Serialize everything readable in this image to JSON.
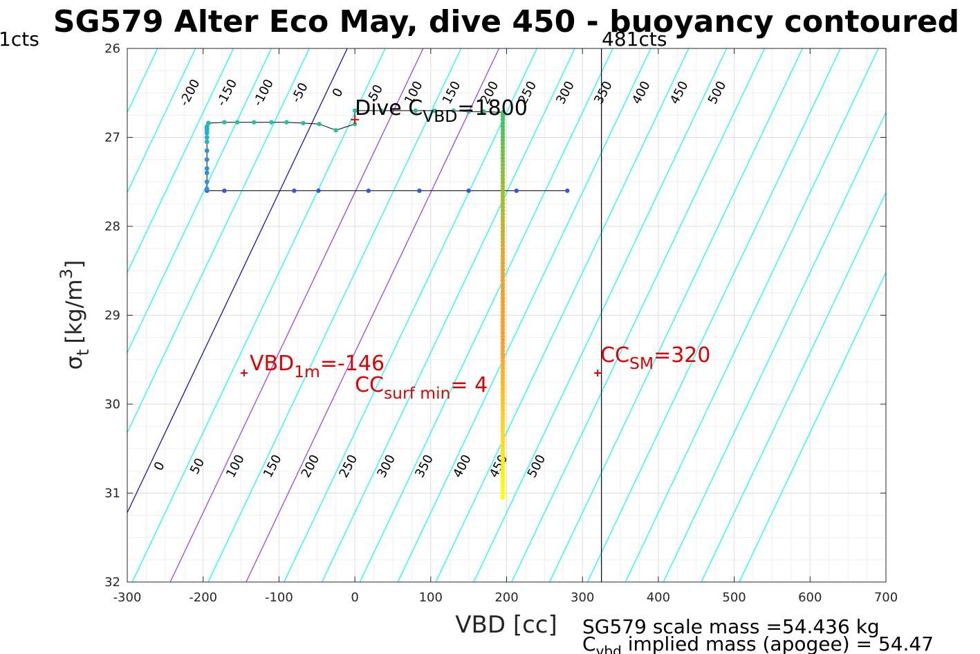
{
  "chart_data": {
    "type": "line",
    "title": "SG579 Alter Eco May, dive 450 - buoyancy contoured",
    "xlabel": "VBD [cc]",
    "ylabel_main": "σ",
    "ylabel_sub": "t",
    "ylabel_unit": "[kg/m",
    "ylabel_exp": "3",
    "ylabel_end": "]",
    "xlim": [
      -300,
      700
    ],
    "ylim": [
      26,
      32
    ],
    "y_reversed": true,
    "grid": true,
    "xticks": [
      -300,
      -200,
      -100,
      0,
      100,
      200,
      300,
      400,
      500,
      600,
      700
    ],
    "yticks": [
      26,
      27,
      28,
      29,
      30,
      31,
      32
    ],
    "contour_top_levels": [
      "-200",
      "-150",
      "-100",
      "-50",
      "0",
      "50",
      "100",
      "150",
      "200",
      "250",
      "300",
      "350",
      "400",
      "450",
      "500"
    ],
    "contour_bottom_levels": [
      "0",
      "50",
      "100",
      "150",
      "200",
      "250",
      "300",
      "350",
      "400",
      "450",
      "500"
    ],
    "contour_colors": {
      "cyan": "#00ffff",
      "zero": "#0000cc",
      "highlight": "#9933ff"
    },
    "highlight_x_at_top": [
      90,
      190
    ],
    "vertical_line_x": 325,
    "vertical_line_label_left": "1cts",
    "vertical_line_label_right": "481cts",
    "descent_track": {
      "color": "#3355ee",
      "x": [
        -195,
        -172,
        -80,
        -48,
        18,
        85,
        150,
        213,
        280
      ],
      "y": [
        27.6,
        27.6,
        27.6,
        27.6,
        27.6,
        27.6,
        27.6,
        27.6,
        27.6
      ]
    },
    "apogee_track": {
      "x": [
        -195,
        -195,
        -195,
        -195,
        -195,
        -195,
        -195,
        -195,
        -195,
        -195,
        -195,
        -195,
        -193
      ],
      "y": [
        27.58,
        27.5,
        27.4,
        27.35,
        27.25,
        27.15,
        27.05,
        27.0,
        26.95,
        26.92,
        26.9,
        26.88,
        26.84
      ]
    },
    "upper_track": {
      "color": "#26bfa0",
      "x": [
        -193,
        -172,
        -155,
        -133,
        -110,
        -90,
        -68,
        -47,
        -25,
        0,
        0,
        35,
        80,
        105,
        130,
        150,
        170,
        195
      ],
      "y": [
        26.84,
        26.83,
        26.83,
        26.83,
        26.83,
        26.83,
        26.84,
        26.85,
        26.92,
        26.85,
        26.7,
        26.7,
        26.7,
        26.7,
        26.7,
        26.71,
        26.71,
        26.72
      ]
    },
    "ascent_column": {
      "x": 195,
      "y_start": 26.72,
      "y_end": 31.05,
      "color_stops": [
        "#3ec16e",
        "#9fbf2a",
        "#e8a82a",
        "#ff9e20",
        "#ffd21a",
        "#ffff00"
      ]
    },
    "markers": [
      {
        "x": -146,
        "y": 29.65,
        "label_main": "VBD",
        "label_sub": "1m",
        "label_tail": "=-146"
      },
      {
        "x": 320,
        "y": 29.65,
        "label_main": "CC",
        "label_sub": "SM",
        "label_tail": "=320"
      },
      {
        "x": 0,
        "y": 26.8,
        "label_main": "Dive C",
        "label_sub": "VBD",
        "label_tail": "=1800"
      }
    ],
    "cc_surf_min": {
      "label_main": "CC",
      "label_sub": "surf min",
      "label_tail": "=  4"
    },
    "footer_line1": "SG579 scale mass =54.436 kg",
    "footer_line2_main": "C",
    "footer_line2_sub": "vbd",
    "footer_line2_tail": " implied mass (apogee) = 54.47"
  }
}
